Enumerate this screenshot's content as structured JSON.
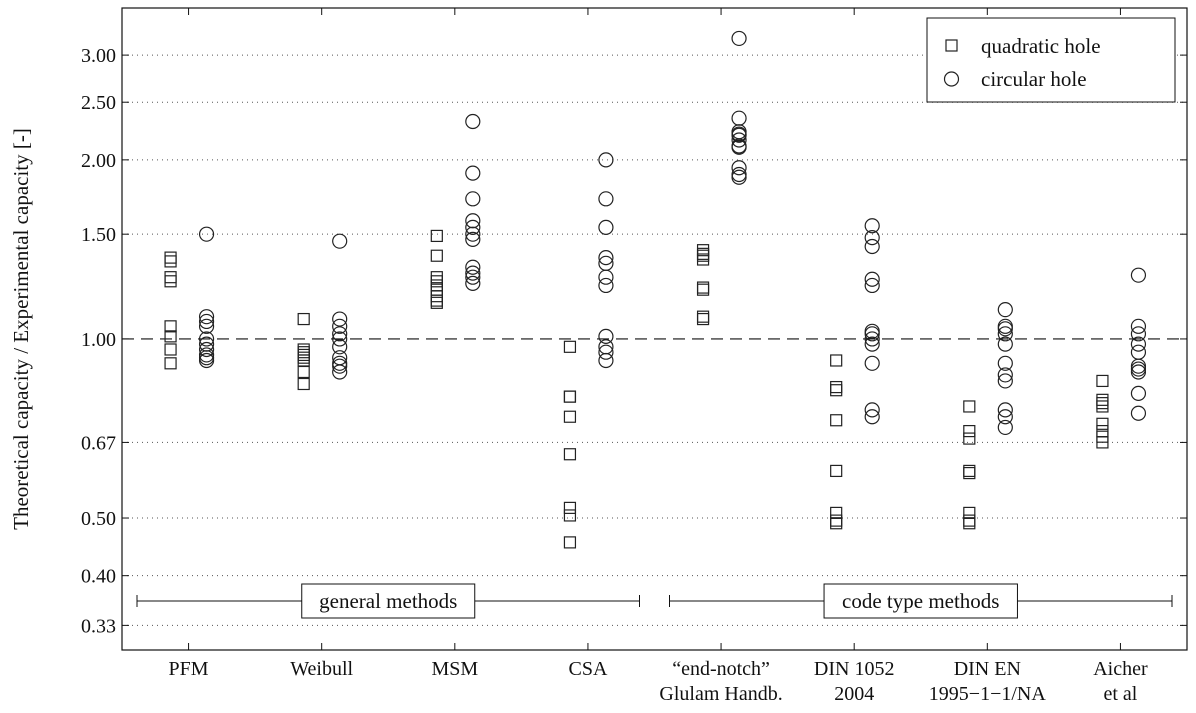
{
  "chart_data": {
    "type": "scatter",
    "title": "",
    "xlabel": "",
    "ylabel": "Theoretical capacity / Experimental capacity  [-]",
    "y_scale": "log",
    "ylim": [
      0.3,
      3.6
    ],
    "y_ticks": [
      {
        "value": 0.33,
        "label": "0.33"
      },
      {
        "value": 0.4,
        "label": "0.40"
      },
      {
        "value": 0.5,
        "label": "0.50"
      },
      {
        "value": 0.67,
        "label": "0.67"
      },
      {
        "value": 1.0,
        "label": "1.00"
      },
      {
        "value": 1.5,
        "label": "1.50"
      },
      {
        "value": 2.0,
        "label": "2.00"
      },
      {
        "value": 2.5,
        "label": "2.50"
      },
      {
        "value": 3.0,
        "label": "3.00"
      }
    ],
    "grid": true,
    "reference_line": 1.0,
    "categories": [
      {
        "line1": "PFM",
        "line2": ""
      },
      {
        "line1": "Weibull",
        "line2": ""
      },
      {
        "line1": "MSM",
        "line2": ""
      },
      {
        "line1": "CSA",
        "line2": ""
      },
      {
        "line1": "“end-notch”",
        "line2": "Glulam Handb."
      },
      {
        "line1": "DIN 1052",
        "line2": "2004"
      },
      {
        "line1": "DIN EN",
        "line2": "1995−1−1/NA"
      },
      {
        "line1": "Aicher",
        "line2": "et al"
      }
    ],
    "legend": {
      "position": "top-right",
      "entries": [
        "quadratic hole",
        "circular hole"
      ]
    },
    "series": [
      {
        "name": "quadratic hole",
        "marker": "square",
        "values": [
          [
            1.37,
            1.35,
            1.27,
            1.25,
            1.05,
            1.01,
            0.96,
            0.91
          ],
          [
            1.08,
            0.96,
            0.95,
            0.94,
            0.93,
            0.92,
            0.88,
            0.84
          ],
          [
            1.49,
            1.38,
            1.27,
            1.25,
            1.23,
            1.21,
            1.18,
            1.16,
            1.15
          ],
          [
            0.97,
            0.8,
            0.8,
            0.74,
            0.64,
            0.52,
            0.505,
            0.455
          ],
          [
            1.41,
            1.39,
            1.38,
            1.36,
            1.22,
            1.21,
            1.09,
            1.08
          ],
          [
            0.92,
            0.83,
            0.82,
            0.73,
            0.6,
            0.51,
            0.495,
            0.49
          ],
          [
            0.77,
            0.7,
            0.68,
            0.6,
            0.595,
            0.51,
            0.495,
            0.49
          ],
          [
            0.85,
            0.79,
            0.78,
            0.77,
            0.72,
            0.7,
            0.685,
            0.67
          ]
        ]
      },
      {
        "name": "circular hole",
        "marker": "circle",
        "values": [
          [
            1.5,
            1.09,
            1.07,
            1.05,
            1.0,
            0.98,
            0.96,
            0.94,
            0.93,
            0.92
          ],
          [
            1.46,
            1.08,
            1.05,
            1.02,
            1.0,
            0.97,
            0.93,
            0.91,
            0.9,
            0.88
          ],
          [
            2.32,
            1.9,
            1.72,
            1.58,
            1.54,
            1.5,
            1.47,
            1.32,
            1.29,
            1.27,
            1.24
          ],
          [
            2.0,
            1.72,
            1.54,
            1.37,
            1.34,
            1.27,
            1.23,
            1.01,
            0.97,
            0.95,
            0.92
          ],
          [
            3.2,
            2.35,
            2.23,
            2.21,
            2.2,
            2.16,
            2.11,
            2.1,
            1.94,
            1.89,
            1.87
          ],
          [
            1.55,
            1.48,
            1.43,
            1.26,
            1.23,
            1.03,
            1.02,
            1.0,
            0.98,
            0.91,
            0.76,
            0.74
          ],
          [
            1.12,
            1.05,
            1.04,
            1.02,
            0.98,
            0.91,
            0.87,
            0.85,
            0.76,
            0.74,
            0.71
          ],
          [
            1.28,
            1.05,
            1.02,
            0.98,
            0.95,
            0.9,
            0.89,
            0.88,
            0.81,
            0.75
          ]
        ]
      }
    ],
    "groups": [
      {
        "label": "general methods",
        "from": 0,
        "to": 3
      },
      {
        "label": "code type methods",
        "from": 4,
        "to": 7
      }
    ]
  }
}
